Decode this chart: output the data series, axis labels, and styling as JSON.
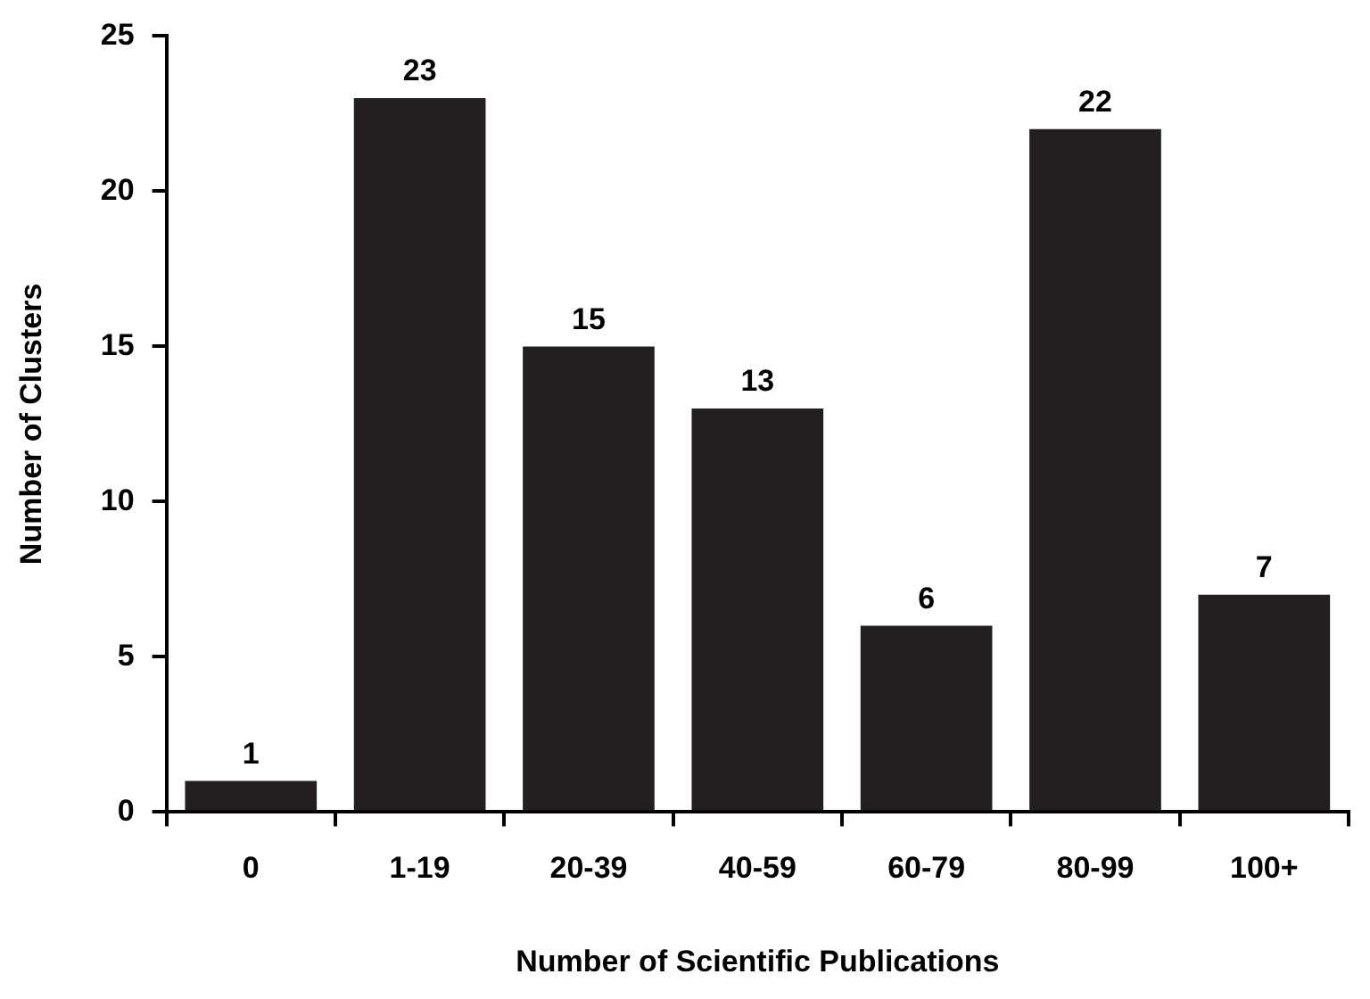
{
  "chart_data": {
    "type": "bar",
    "xlabel": "Number of Scientific Publications",
    "ylabel": "Number of Clusters",
    "categories": [
      "0",
      "1-19",
      "20-39",
      "40-59",
      "60-79",
      "80-99",
      "100+"
    ],
    "values": [
      1,
      23,
      15,
      13,
      6,
      22,
      7
    ],
    "color": "#231f20",
    "ylim": [
      0,
      25
    ],
    "yticks": [
      0,
      5,
      10,
      15,
      20,
      25
    ],
    "grid": false,
    "legend": false,
    "data_labels": true
  }
}
